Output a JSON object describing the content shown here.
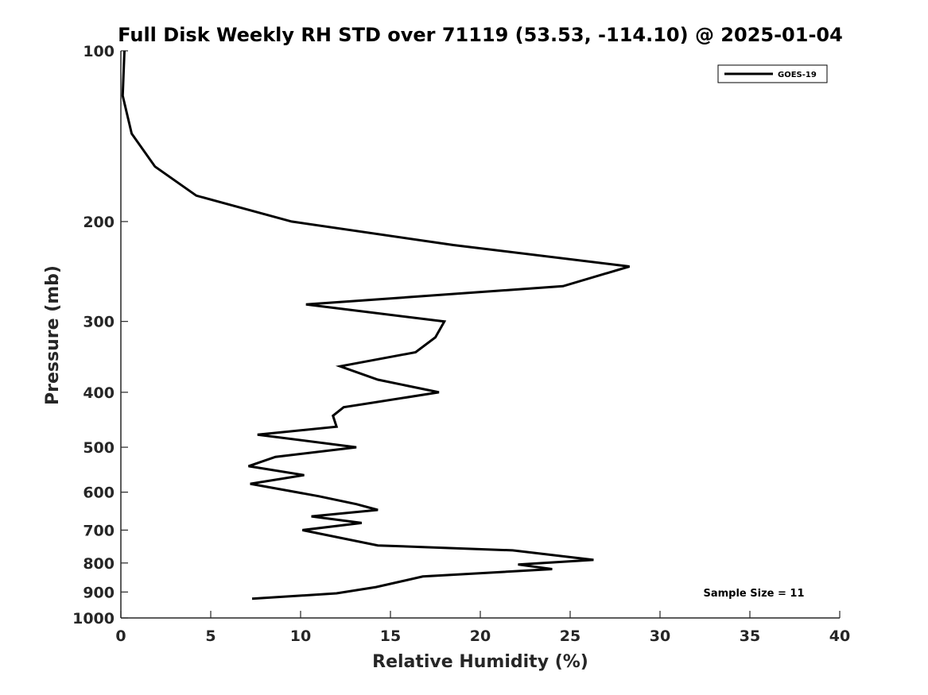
{
  "chart_data": {
    "type": "line",
    "title": "Full Disk Weekly RH STD over 71119 (53.53, -114.10) @ 2025-01-04",
    "xlabel": "Relative Humidity (%)",
    "ylabel": "Pressure (mb)",
    "xlim": [
      0,
      40
    ],
    "ylim": [
      100,
      1000
    ],
    "yscale": "log",
    "y_reversed": true,
    "grid": false,
    "legend_position": "top-right",
    "x_ticks": [
      0,
      5,
      10,
      15,
      20,
      25,
      30,
      35,
      40
    ],
    "x_tick_labels": [
      "0",
      "5",
      "10",
      "15",
      "20",
      "25",
      "30",
      "35",
      "40"
    ],
    "y_ticks": [
      100,
      200,
      300,
      400,
      500,
      600,
      700,
      800,
      900,
      1000
    ],
    "y_tick_labels": [
      "100",
      "200",
      "300",
      "400",
      "500",
      "600",
      "700",
      "800",
      "900",
      "1000"
    ],
    "annotation": "Sample Size = 11",
    "series": [
      {
        "name": "GOES-19",
        "color": "#000000",
        "points": [
          {
            "x": 0.2,
            "y": 100
          },
          {
            "x": 0.1,
            "y": 120
          },
          {
            "x": 0.6,
            "y": 140
          },
          {
            "x": 1.9,
            "y": 160
          },
          {
            "x": 4.2,
            "y": 180
          },
          {
            "x": 9.5,
            "y": 200
          },
          {
            "x": 18.5,
            "y": 220
          },
          {
            "x": 28.3,
            "y": 240
          },
          {
            "x": 24.6,
            "y": 260
          },
          {
            "x": 10.3,
            "y": 280
          },
          {
            "x": 18.0,
            "y": 300
          },
          {
            "x": 17.5,
            "y": 320
          },
          {
            "x": 16.4,
            "y": 340
          },
          {
            "x": 12.2,
            "y": 360
          },
          {
            "x": 14.3,
            "y": 380
          },
          {
            "x": 17.7,
            "y": 400
          },
          {
            "x": 12.4,
            "y": 425
          },
          {
            "x": 11.8,
            "y": 440
          },
          {
            "x": 12.0,
            "y": 460
          },
          {
            "x": 7.6,
            "y": 475
          },
          {
            "x": 13.1,
            "y": 500
          },
          {
            "x": 8.6,
            "y": 520
          },
          {
            "x": 7.1,
            "y": 540
          },
          {
            "x": 10.2,
            "y": 560
          },
          {
            "x": 7.2,
            "y": 580
          },
          {
            "x": 11.0,
            "y": 610
          },
          {
            "x": 13.1,
            "y": 630
          },
          {
            "x": 14.3,
            "y": 645
          },
          {
            "x": 10.6,
            "y": 662
          },
          {
            "x": 13.4,
            "y": 680
          },
          {
            "x": 10.1,
            "y": 700
          },
          {
            "x": 14.3,
            "y": 745
          },
          {
            "x": 21.8,
            "y": 760
          },
          {
            "x": 26.3,
            "y": 790
          },
          {
            "x": 22.1,
            "y": 805
          },
          {
            "x": 24.0,
            "y": 820
          },
          {
            "x": 16.8,
            "y": 845
          },
          {
            "x": 14.2,
            "y": 882
          },
          {
            "x": 12.0,
            "y": 905
          },
          {
            "x": 7.3,
            "y": 925
          }
        ]
      }
    ]
  }
}
